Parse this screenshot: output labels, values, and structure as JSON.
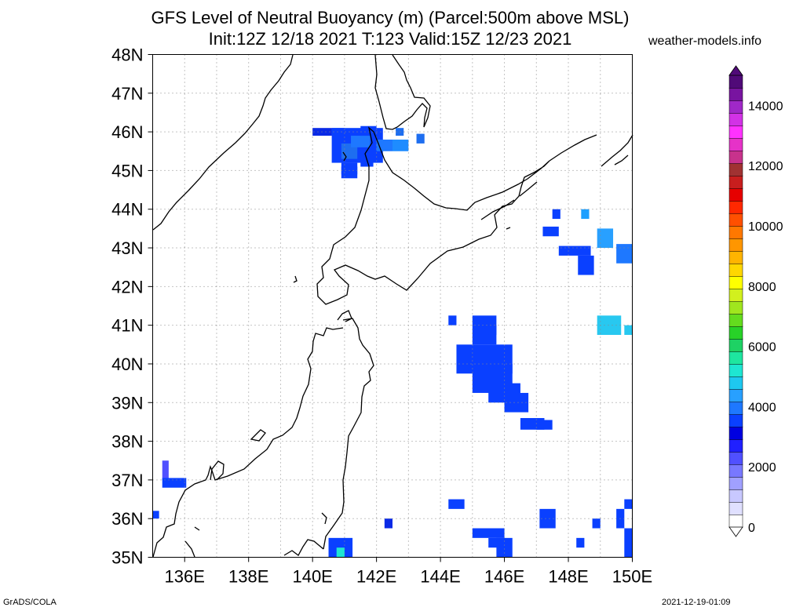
{
  "title_line1": "GFS Level of Neutral Buoyancy (m) (Parcel:500m above MSL)",
  "title_line2": "Init:12Z 12/18 2021 T:123 Valid:15Z 12/23 2021",
  "site": "weather-models.info",
  "footer_left": "GrADS/COLA",
  "footer_right": "2021-12-19-01:09",
  "map": {
    "lon_range": [
      135,
      150
    ],
    "lat_range": [
      35,
      48
    ],
    "lat_labels": [
      "35N",
      "36N",
      "37N",
      "38N",
      "39N",
      "40N",
      "41N",
      "42N",
      "43N",
      "44N",
      "45N",
      "46N",
      "47N",
      "48N"
    ],
    "lon_labels": [
      "136E",
      "138E",
      "140E",
      "142E",
      "144E",
      "146E",
      "148E",
      "150E"
    ],
    "coastline_color": "#000000",
    "grid_color": "#888888"
  },
  "colorbar": {
    "labels": [
      "0",
      "2000",
      "4000",
      "6000",
      "8000",
      "10000",
      "12000",
      "14000"
    ],
    "min": 0,
    "max": 15000,
    "colors": [
      "#ffffff",
      "#e0e0ff",
      "#c8c8ff",
      "#a0a0ff",
      "#7878ff",
      "#5050ff",
      "#2020ff",
      "#0000e0",
      "#0a40ff",
      "#1e78ff",
      "#28a0ff",
      "#1ec8f0",
      "#1ee6d2",
      "#1ee6a0",
      "#1ed264",
      "#28d228",
      "#64dc1e",
      "#a0e61e",
      "#d2f01e",
      "#ffff00",
      "#ffd700",
      "#ffb400",
      "#ff9600",
      "#ff7800",
      "#ff5000",
      "#ff2800",
      "#e60000",
      "#c81e1e",
      "#a03232",
      "#c8328c",
      "#e632c8",
      "#ff32ff",
      "#d232e6",
      "#a028c8",
      "#7814a0",
      "#500a78"
    ]
  },
  "cells": [
    {
      "lon": 140.0,
      "lat": 45.9,
      "w": 0.6,
      "h": 0.2,
      "c": "#0a2ae6"
    },
    {
      "lon": 140.6,
      "lat": 45.2,
      "w": 1.6,
      "h": 0.9,
      "c": "#0a40ff"
    },
    {
      "lon": 140.9,
      "lat": 45.3,
      "w": 0.5,
      "h": 0.4,
      "c": "#1e6ef0"
    },
    {
      "lon": 141.2,
      "lat": 45.6,
      "w": 0.6,
      "h": 0.3,
      "c": "#1e78ff"
    },
    {
      "lon": 141.5,
      "lat": 45.1,
      "w": 0.4,
      "h": 0.3,
      "c": "#0a40ff"
    },
    {
      "lon": 140.9,
      "lat": 44.8,
      "w": 0.5,
      "h": 0.3,
      "c": "#0a40ff"
    },
    {
      "lon": 140.9,
      "lat": 44.9,
      "w": 0.5,
      "h": 0.3,
      "c": "#0a40ff"
    },
    {
      "lon": 140.6,
      "lat": 45.9,
      "w": 0.4,
      "h": 0.2,
      "c": "#0a40ff"
    },
    {
      "lon": 142.0,
      "lat": 45.5,
      "w": 0.5,
      "h": 0.3,
      "c": "#1e78ff"
    },
    {
      "lon": 142.5,
      "lat": 45.5,
      "w": 0.5,
      "h": 0.3,
      "c": "#1e8cff"
    },
    {
      "lon": 142.6,
      "lat": 45.9,
      "w": 0.25,
      "h": 0.2,
      "c": "#1e6ef0"
    },
    {
      "lon": 143.25,
      "lat": 45.7,
      "w": 0.25,
      "h": 0.25,
      "c": "#1e6ef0"
    },
    {
      "lon": 141.5,
      "lat": 45.9,
      "w": 0.5,
      "h": 0.25,
      "c": "#0a40ff"
    },
    {
      "lon": 147.2,
      "lat": 43.3,
      "w": 0.5,
      "h": 0.25,
      "c": "#0a40ff"
    },
    {
      "lon": 147.5,
      "lat": 43.75,
      "w": 0.25,
      "h": 0.25,
      "c": "#0a40ff"
    },
    {
      "lon": 148.4,
      "lat": 43.75,
      "w": 0.25,
      "h": 0.25,
      "c": "#1ea0ff"
    },
    {
      "lon": 148.9,
      "lat": 43.0,
      "w": 0.5,
      "h": 0.5,
      "c": "#28a0ff"
    },
    {
      "lon": 147.7,
      "lat": 42.8,
      "w": 1.0,
      "h": 0.25,
      "c": "#0a40ff"
    },
    {
      "lon": 148.3,
      "lat": 42.3,
      "w": 0.5,
      "h": 0.5,
      "c": "#0a40ff"
    },
    {
      "lon": 149.5,
      "lat": 42.6,
      "w": 0.5,
      "h": 0.5,
      "c": "#1e78ff"
    },
    {
      "lon": 148.9,
      "lat": 40.75,
      "w": 0.75,
      "h": 0.5,
      "c": "#28c8f0"
    },
    {
      "lon": 149.75,
      "lat": 40.75,
      "w": 0.25,
      "h": 0.25,
      "c": "#28c8f0"
    },
    {
      "lon": 144.25,
      "lat": 41.0,
      "w": 0.25,
      "h": 0.25,
      "c": "#0a40ff"
    },
    {
      "lon": 144.5,
      "lat": 39.75,
      "w": 1.75,
      "h": 0.75,
      "c": "#0a40ff"
    },
    {
      "lon": 145.0,
      "lat": 39.25,
      "w": 1.25,
      "h": 0.75,
      "c": "#0a40ff"
    },
    {
      "lon": 145.5,
      "lat": 39.0,
      "w": 1.0,
      "h": 0.5,
      "c": "#0a40ff"
    },
    {
      "lon": 146.0,
      "lat": 38.75,
      "w": 0.75,
      "h": 0.5,
      "c": "#0a40ff"
    },
    {
      "lon": 146.5,
      "lat": 38.3,
      "w": 0.75,
      "h": 0.3,
      "c": "#0a40ff"
    },
    {
      "lon": 147.0,
      "lat": 38.3,
      "w": 0.5,
      "h": 0.25,
      "c": "#0a40ff"
    },
    {
      "lon": 145.0,
      "lat": 40.5,
      "w": 0.75,
      "h": 0.75,
      "c": "#0a40ff"
    },
    {
      "lon": 145.5,
      "lat": 40.75,
      "w": 0.25,
      "h": 0.25,
      "c": "#0a40ff"
    },
    {
      "lon": 135.3,
      "lat": 37.0,
      "w": 0.2,
      "h": 0.5,
      "c": "#5050ff"
    },
    {
      "lon": 135.3,
      "lat": 36.8,
      "w": 0.75,
      "h": 0.25,
      "c": "#0a40ff"
    },
    {
      "lon": 135.0,
      "lat": 36.0,
      "w": 0.2,
      "h": 0.2,
      "c": "#0a40ff"
    },
    {
      "lon": 144.25,
      "lat": 36.25,
      "w": 0.5,
      "h": 0.25,
      "c": "#0a40ff"
    },
    {
      "lon": 142.25,
      "lat": 35.75,
      "w": 0.25,
      "h": 0.25,
      "c": "#0a2ae6"
    },
    {
      "lon": 145.0,
      "lat": 35.5,
      "w": 1.0,
      "h": 0.25,
      "c": "#0a40ff"
    },
    {
      "lon": 145.5,
      "lat": 35.25,
      "w": 0.5,
      "h": 0.25,
      "c": "#0a40ff"
    },
    {
      "lon": 145.75,
      "lat": 35.0,
      "w": 0.5,
      "h": 0.5,
      "c": "#0a40ff"
    },
    {
      "lon": 147.1,
      "lat": 35.75,
      "w": 0.5,
      "h": 0.5,
      "c": "#0a40ff"
    },
    {
      "lon": 148.75,
      "lat": 35.75,
      "w": 0.25,
      "h": 0.25,
      "c": "#0a40ff"
    },
    {
      "lon": 149.5,
      "lat": 35.75,
      "w": 0.25,
      "h": 0.5,
      "c": "#0a40ff"
    },
    {
      "lon": 149.75,
      "lat": 36.25,
      "w": 0.25,
      "h": 0.25,
      "c": "#0a40ff"
    },
    {
      "lon": 149.75,
      "lat": 35.0,
      "w": 0.25,
      "h": 0.75,
      "c": "#0a40ff"
    },
    {
      "lon": 148.25,
      "lat": 35.25,
      "w": 0.25,
      "h": 0.25,
      "c": "#0a40ff"
    },
    {
      "lon": 140.5,
      "lat": 35.0,
      "w": 0.75,
      "h": 0.5,
      "c": "#0a40ff"
    },
    {
      "lon": 140.75,
      "lat": 35.0,
      "w": 0.25,
      "h": 0.25,
      "c": "#1ee6d2"
    }
  ]
}
